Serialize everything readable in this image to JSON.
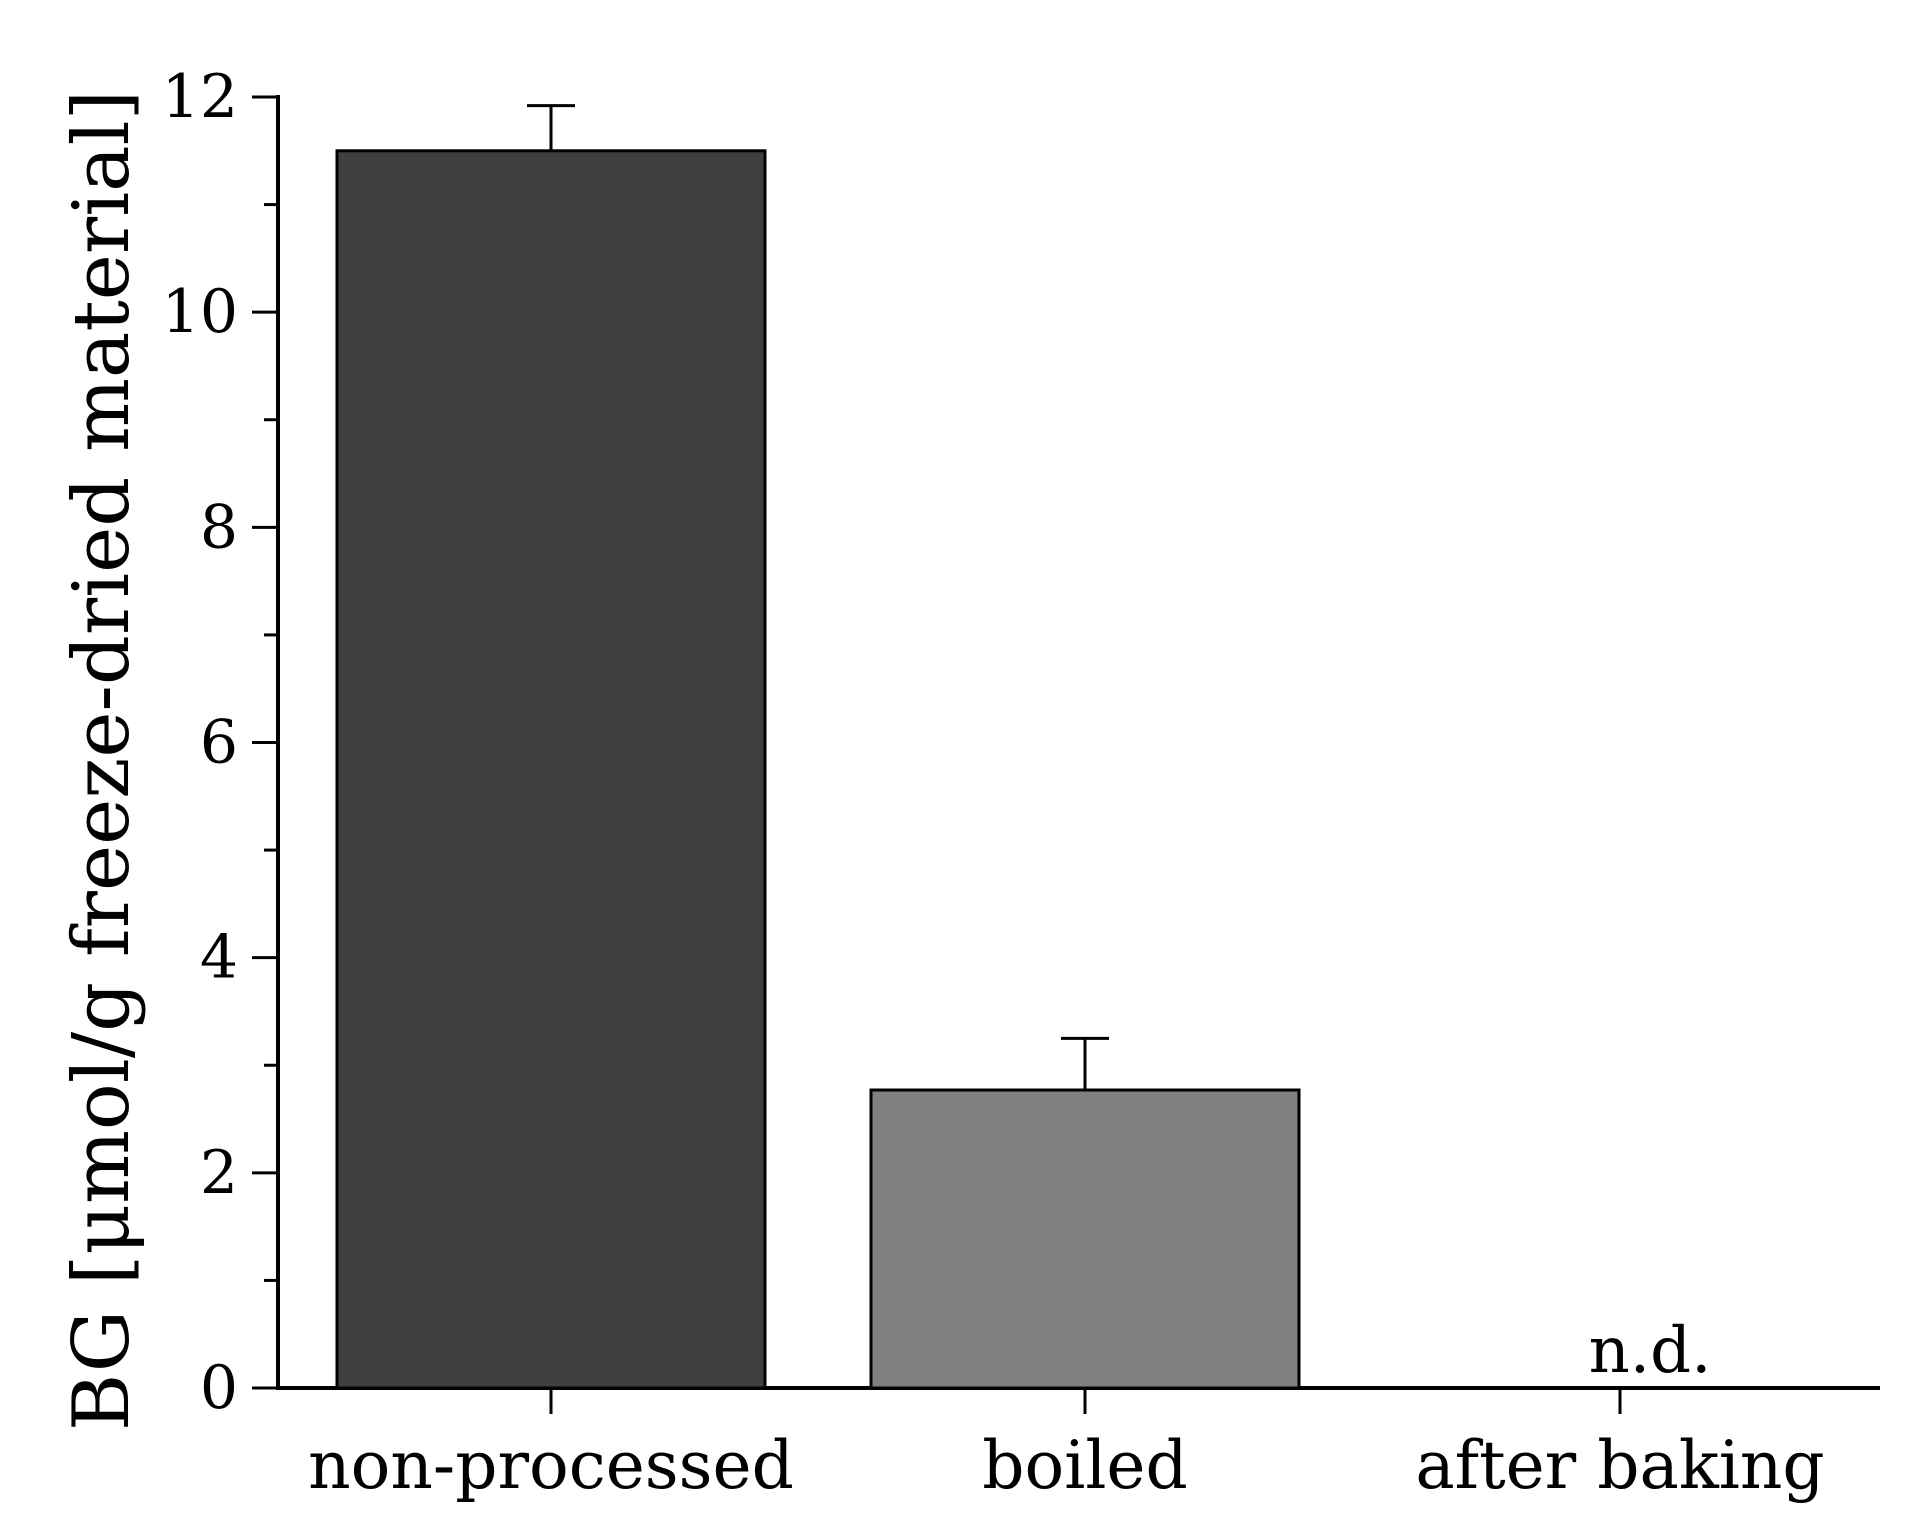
{
  "chart_data": {
    "type": "bar",
    "title": "",
    "xlabel": "",
    "ylabel": "BG [μmol/g freeze-dried material]",
    "ylim": [
      0,
      12
    ],
    "yticks": [
      0,
      2,
      4,
      6,
      8,
      10,
      12
    ],
    "minor_tick_step": 1,
    "grid": false,
    "legend": "none",
    "categories": [
      "non-processed",
      "boiled",
      "after baking"
    ],
    "values": [
      11.5,
      2.77,
      0
    ],
    "errors": [
      0.42,
      0.48,
      0
    ],
    "value_annotations": [
      "",
      "",
      "n.d."
    ],
    "colors": [
      "#404040",
      "#808080",
      "#ffffff"
    ],
    "bar_edge_color": "#000000"
  }
}
